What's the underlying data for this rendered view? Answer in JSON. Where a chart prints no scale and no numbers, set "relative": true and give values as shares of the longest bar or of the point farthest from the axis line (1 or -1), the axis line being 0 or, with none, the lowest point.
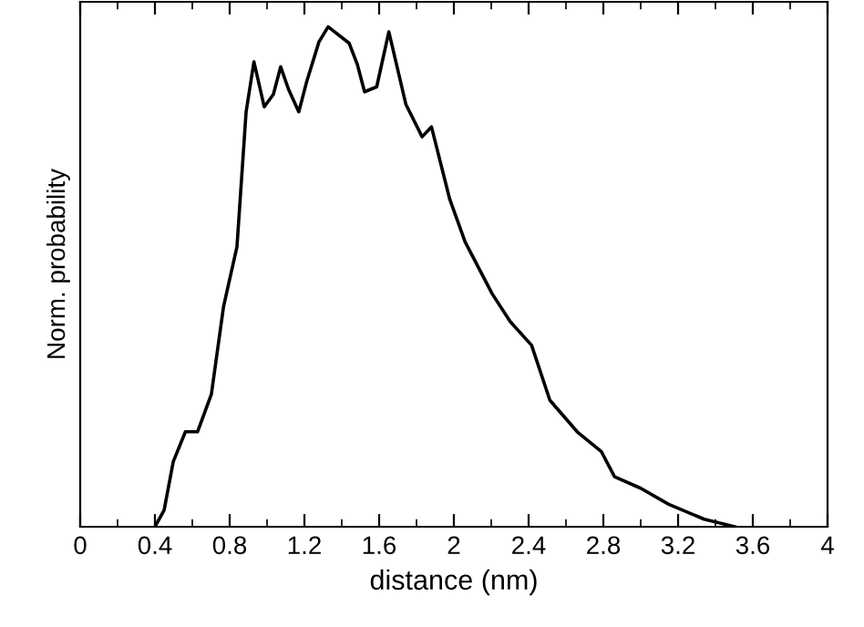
{
  "chart_data": {
    "type": "line",
    "xlabel": "distance (nm)",
    "ylabel": "Norm. probability",
    "relative": true,
    "tick_labels": "x",
    "xlim": [
      0,
      4
    ],
    "xticks": [
      0,
      0.4,
      0.8,
      1.2,
      1.6,
      2,
      2.4,
      2.8,
      3.2,
      3.6,
      4
    ],
    "grid": false,
    "legend": false,
    "marker": "none",
    "line_style": "solid",
    "series": [
      {
        "color": "#000000",
        "x": [
          0.4,
          0.449,
          0.498,
          0.563,
          0.628,
          0.702,
          0.767,
          0.839,
          0.888,
          0.93,
          0.985,
          1.034,
          1.073,
          1.115,
          1.17,
          1.212,
          1.278,
          1.327,
          1.44,
          1.483,
          1.522,
          1.587,
          1.652,
          1.743,
          1.83,
          1.88,
          1.978,
          2.06,
          2.205,
          2.302,
          2.416,
          2.514,
          2.66,
          2.79,
          2.86,
          3.0,
          3.15,
          3.34,
          3.505
        ],
        "values": [
          0,
          0.033,
          0.13,
          0.19,
          0.19,
          0.265,
          0.44,
          0.56,
          0.83,
          0.93,
          0.84,
          0.865,
          0.92,
          0.875,
          0.83,
          0.89,
          0.97,
          1.0,
          0.967,
          0.925,
          0.87,
          0.88,
          0.99,
          0.845,
          0.78,
          0.8,
          0.655,
          0.57,
          0.466,
          0.41,
          0.363,
          0.253,
          0.19,
          0.15,
          0.1,
          0.077,
          0.045,
          0.015,
          0
        ]
      }
    ]
  }
}
